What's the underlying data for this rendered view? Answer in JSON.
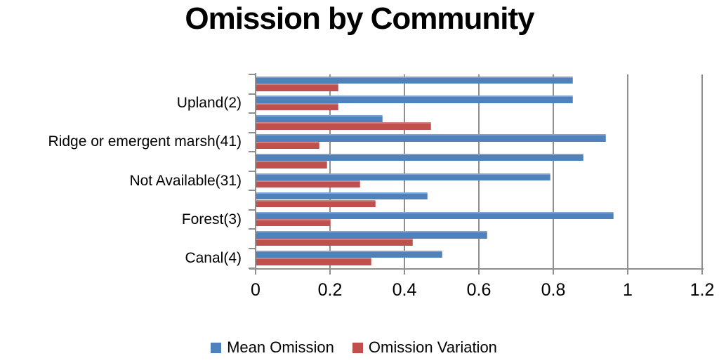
{
  "title": "Omission by Community",
  "chart_data": {
    "type": "bar",
    "orientation": "horizontal",
    "title": "Omission by Community",
    "xlabel": "",
    "ylabel": "",
    "xlim": [
      0,
      1.2
    ],
    "x_tick_values": [
      0,
      0.2,
      0.4,
      0.6,
      0.8,
      1,
      1.2
    ],
    "x_tick_labels": [
      "0",
      "0.2",
      "0.4",
      "0.6",
      "0.8",
      "1",
      "1.2"
    ],
    "grid": "vertical gridlines at each x tick, no horizontal gridlines",
    "legend_position": "bottom",
    "rows_order": "top-to-bottom",
    "category_axis_note": "only every second category slot shows a label; unlabeled slots are empty strings",
    "categories": [
      "",
      "Upland(2)",
      "",
      "Ridge or emergent marsh(41)",
      "",
      "Not Available(31)",
      "",
      "Forest(3)",
      "",
      "Canal(4)"
    ],
    "series": [
      {
        "name": "Mean Omission",
        "color": "#4F81BD",
        "values": [
          0.85,
          0.85,
          0.34,
          0.94,
          0.88,
          0.79,
          0.46,
          0.96,
          0.62,
          0.5
        ]
      },
      {
        "name": "Omission Variation",
        "color": "#C0504D",
        "values": [
          0.22,
          0.22,
          0.47,
          0.17,
          0.19,
          0.28,
          0.32,
          0.2,
          0.42,
          0.31
        ]
      }
    ]
  },
  "legend": {
    "items": [
      {
        "label": "Mean Omission",
        "color": "#4F81BD"
      },
      {
        "label": "Omission Variation",
        "color": "#C0504D"
      }
    ]
  },
  "colors": {
    "background": "#FFFFFF",
    "text": "#000000",
    "gridline": "#8F8F8F",
    "axis": "#8F8F8F"
  }
}
